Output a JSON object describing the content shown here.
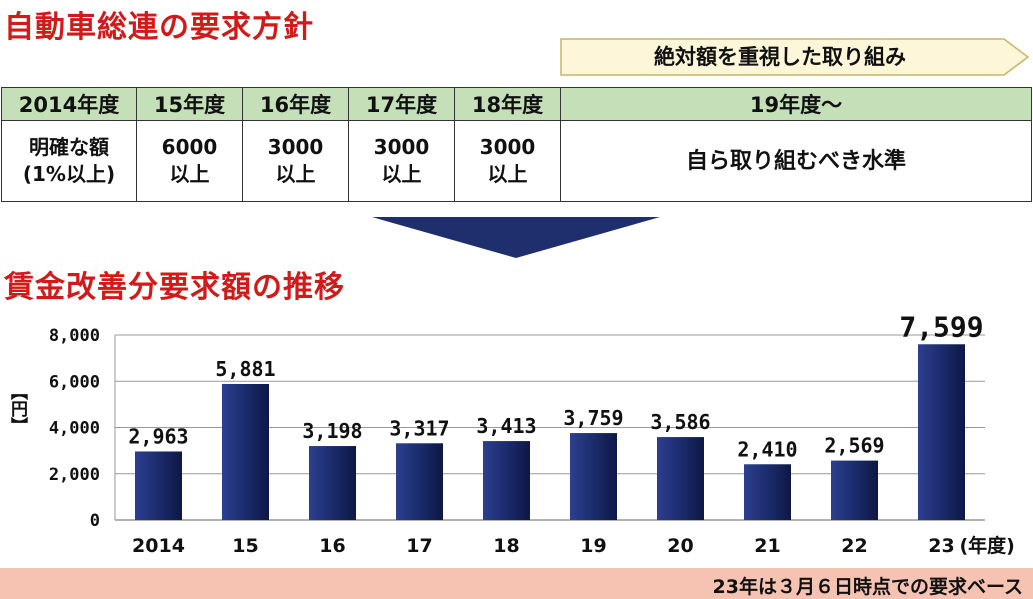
{
  "policy": {
    "title": "自動車総連の要求方針",
    "banner": "絶対額を重視した取り組み",
    "headers": [
      "2014年度",
      "15年度",
      "16年度",
      "17年度",
      "18年度",
      "19年度〜"
    ],
    "values": [
      "明確な額\n(1%以上)",
      "6000\n以上",
      "3000\n以上",
      "3000\n以上",
      "3000\n以上",
      "自ら取り組むべき水準"
    ]
  },
  "chart_title": "賃金改善分要求額の推移",
  "chart_data": {
    "type": "bar",
    "categories": [
      "2014",
      "15",
      "16",
      "17",
      "18",
      "19",
      "20",
      "21",
      "22",
      "23"
    ],
    "values": [
      2963,
      5881,
      3198,
      3317,
      3413,
      3759,
      3586,
      2410,
      2569,
      7599
    ],
    "value_labels": [
      "2,963",
      "5,881",
      "3,198",
      "3,317",
      "3,413",
      "3,759",
      "3,586",
      "2,410",
      "2,569",
      "7,599"
    ],
    "ylabel": "【円】",
    "xlabel": "(年度)",
    "ylim": [
      0,
      8000
    ],
    "yticks": [
      0,
      2000,
      4000,
      6000,
      8000
    ],
    "ytick_labels": [
      "0",
      "2,000",
      "4,000",
      "6,000",
      "8,000"
    ],
    "bar_color": "#1a2a6a",
    "highlight_index": 9
  },
  "footer": {
    "note": "23年は３月６日時点での要求ベース",
    "color": "#f6c3b3"
  },
  "colors": {
    "title": "#d11a1a",
    "table_header": "#c5e0b8",
    "banner_fill": "#fdf6d8",
    "arrow": "#1f2f6e"
  }
}
